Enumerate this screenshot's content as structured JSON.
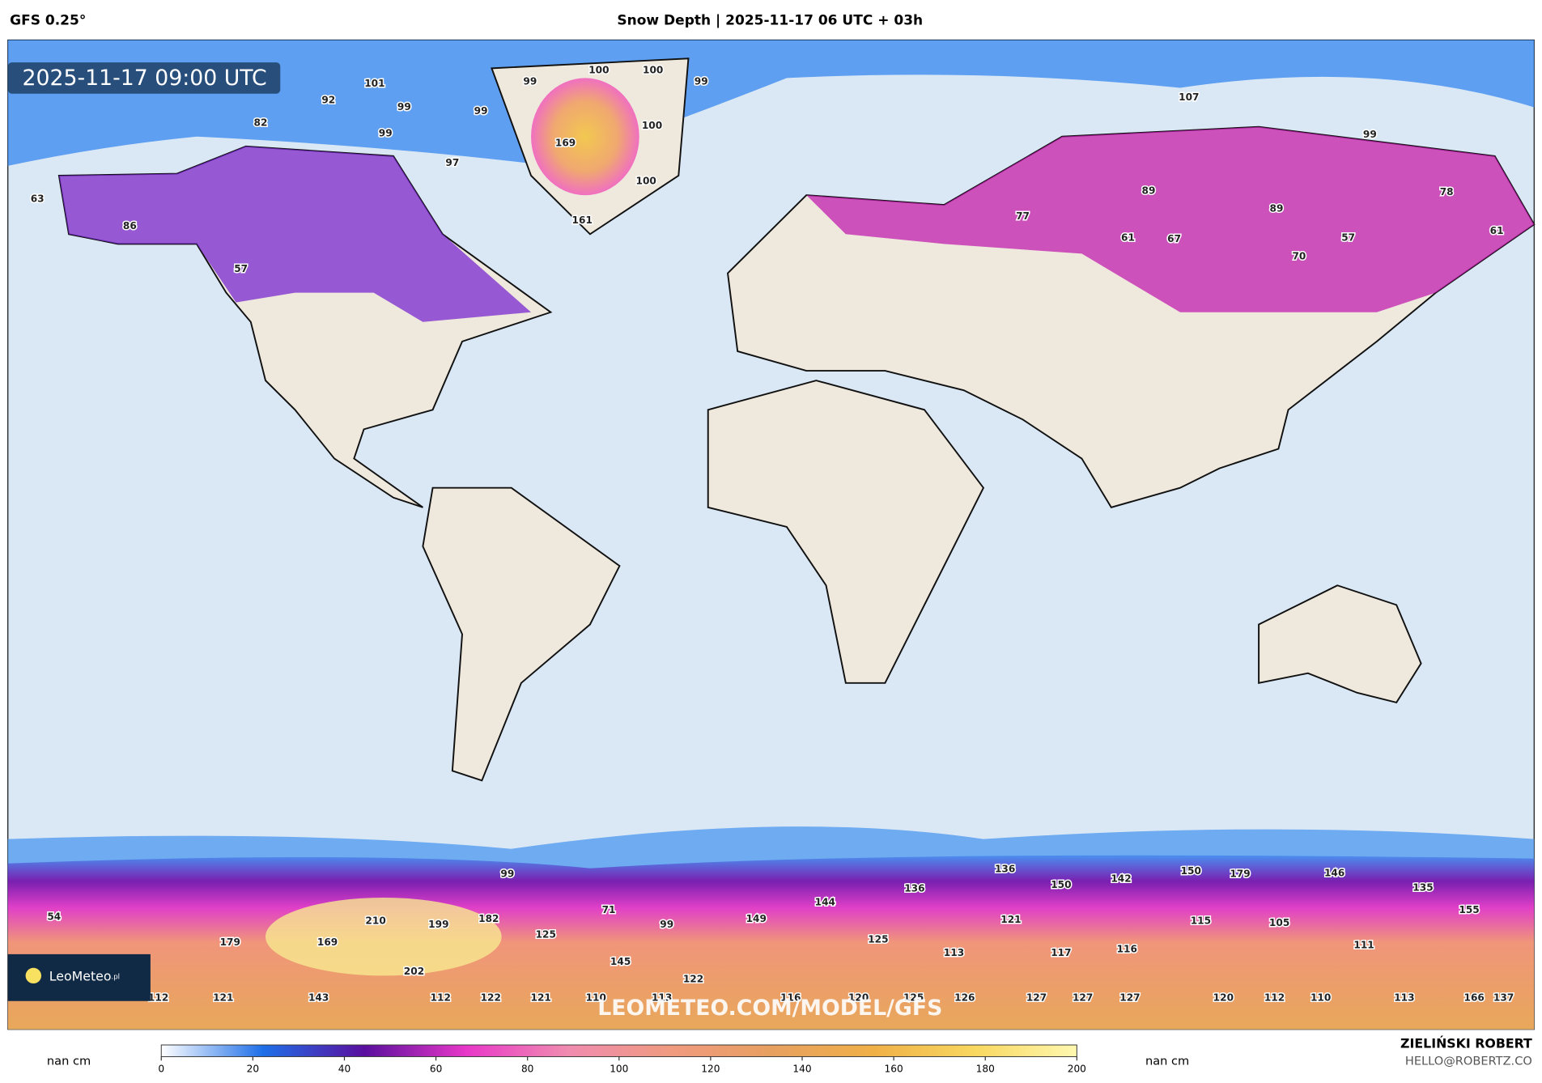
{
  "header": {
    "model": "GFS 0.25°",
    "title": "Snow Depth | 2025-11-17 06 UTC + 03h"
  },
  "timestamp": "2025-11-17 09:00 UTC",
  "watermark": "LEOMETEO.COM/MODEL/GFS",
  "logo": {
    "name": "LeoMeteo",
    "suffix": ".pl"
  },
  "labels": [
    101,
    92,
    99,
    99,
    100,
    100,
    99,
    99,
    82,
    99,
    100,
    169,
    97,
    100,
    161,
    63,
    86,
    57,
    107,
    99,
    89,
    89,
    78,
    77,
    61,
    67,
    57,
    61,
    70,
    99,
    136,
    142,
    150,
    179,
    146,
    136,
    150,
    135,
    144,
    155,
    54,
    71,
    210,
    199,
    182,
    99,
    149,
    121,
    115,
    105,
    125,
    179,
    169,
    125,
    113,
    117,
    116,
    111,
    145,
    202,
    122,
    112,
    121,
    143,
    112,
    122,
    121,
    110,
    113,
    116,
    120,
    125,
    126,
    127,
    127,
    127,
    120,
    112,
    110,
    113,
    166,
    137
  ],
  "colorbar": {
    "range": [
      0,
      200
    ],
    "ticks": [
      0,
      20,
      40,
      60,
      80,
      100,
      120,
      140,
      160,
      180,
      200
    ],
    "colors": [
      "#ffffff",
      "#1e6fe8",
      "#5a0f9e",
      "#e838c8",
      "#f08cb0",
      "#f09a80",
      "#e8a060",
      "#f0b048",
      "#f8d860",
      "#fff8b0"
    ],
    "left_label": "nan cm",
    "right_label": "nan cm"
  },
  "credit": {
    "name": "ZIELIŃSKI ROBERT",
    "email": "HELLO@ROBERTZ.CO"
  }
}
